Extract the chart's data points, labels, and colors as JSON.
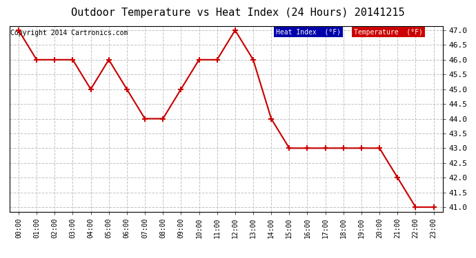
{
  "title": "Outdoor Temperature vs Heat Index (24 Hours) 20141215",
  "copyright": "Copyright 2014 Cartronics.com",
  "x_labels": [
    "00:00",
    "01:00",
    "02:00",
    "03:00",
    "04:00",
    "05:00",
    "06:00",
    "07:00",
    "08:00",
    "09:00",
    "10:00",
    "11:00",
    "12:00",
    "13:00",
    "14:00",
    "15:00",
    "16:00",
    "17:00",
    "18:00",
    "19:00",
    "20:00",
    "21:00",
    "22:00",
    "23:00"
  ],
  "temperature": [
    47.0,
    46.0,
    46.0,
    46.0,
    45.0,
    46.0,
    45.0,
    44.0,
    44.0,
    45.0,
    46.0,
    46.0,
    47.0,
    46.0,
    44.0,
    43.0,
    43.0,
    43.0,
    43.0,
    43.0,
    43.0,
    42.0,
    41.0,
    41.0
  ],
  "heat_index": [
    47.0,
    46.0,
    46.0,
    46.0,
    45.0,
    46.0,
    45.0,
    44.0,
    44.0,
    45.0,
    46.0,
    46.0,
    47.0,
    46.0,
    44.0,
    43.0,
    43.0,
    43.0,
    43.0,
    43.0,
    43.0,
    42.0,
    41.0,
    41.0
  ],
  "temp_color": "#cc0000",
  "heat_color": "#000000",
  "ylim_min": 41.0,
  "ylim_max": 47.0,
  "ytick_step": 0.5,
  "bg_color": "#ffffff",
  "grid_color": "#bbbbbb",
  "legend_heat_bg": "#0000aa",
  "legend_temp_bg": "#cc0000",
  "legend_text_color": "#ffffff",
  "title_fontsize": 11,
  "copyright_fontsize": 7
}
